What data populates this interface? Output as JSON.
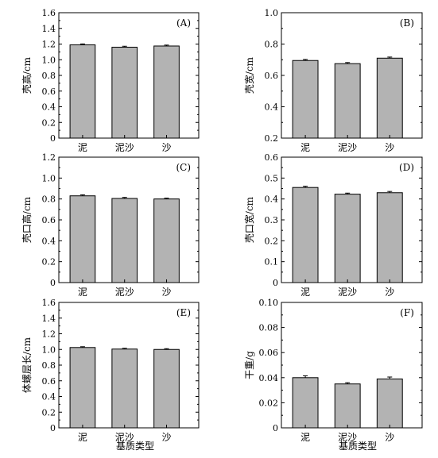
{
  "colors": {
    "bar_fill": "#b3b3b3",
    "bar_stroke": "#000000",
    "axis": "#000000"
  },
  "x_axis_title": "基质类型",
  "chart_data": [
    {
      "type": "bar",
      "panel": "(A)",
      "ylabel": "壳高/cm",
      "ylim": [
        0,
        1.6
      ],
      "yticks": [
        0,
        0.2,
        0.4,
        0.6,
        0.8,
        1.0,
        1.2,
        1.4,
        1.6
      ],
      "ytick_labels": [
        "0",
        "0.2",
        "0.4",
        "0.6",
        "0.8",
        "1.0",
        "1.2",
        "1.4",
        "1.6"
      ],
      "categories": [
        "泥",
        "泥沙",
        "沙"
      ],
      "values": [
        1.19,
        1.16,
        1.175
      ],
      "errors": [
        0.012,
        0.012,
        0.012
      ]
    },
    {
      "type": "bar",
      "panel": "(B)",
      "ylabel": "壳宽/cm",
      "ylim": [
        0.2,
        1.0
      ],
      "yticks": [
        0.2,
        0.4,
        0.6,
        0.8,
        1.0
      ],
      "ytick_labels": [
        "0.2",
        "0.4",
        "0.6",
        "0.8",
        "1.0"
      ],
      "categories": [
        "泥",
        "泥沙",
        "沙"
      ],
      "values": [
        0.695,
        0.675,
        0.71
      ],
      "errors": [
        0.007,
        0.007,
        0.007
      ]
    },
    {
      "type": "bar",
      "panel": "(C)",
      "ylabel": "壳口高/cm",
      "ylim": [
        0,
        1.2
      ],
      "yticks": [
        0,
        0.2,
        0.4,
        0.6,
        0.8,
        1.0,
        1.2
      ],
      "ytick_labels": [
        "0",
        "0.2",
        "0.4",
        "0.6",
        "0.8",
        "1.0",
        "1.2"
      ],
      "categories": [
        "泥",
        "泥沙",
        "沙"
      ],
      "values": [
        0.83,
        0.805,
        0.8
      ],
      "errors": [
        0.01,
        0.01,
        0.008
      ]
    },
    {
      "type": "bar",
      "panel": "(D)",
      "ylabel": "壳口宽/cm",
      "ylim": [
        0,
        0.6
      ],
      "yticks": [
        0,
        0.1,
        0.2,
        0.3,
        0.4,
        0.5,
        0.6
      ],
      "ytick_labels": [
        "0",
        "0.1",
        "0.2",
        "0.3",
        "0.4",
        "0.5",
        "0.6"
      ],
      "categories": [
        "泥",
        "泥沙",
        "沙"
      ],
      "values": [
        0.455,
        0.423,
        0.43
      ],
      "errors": [
        0.006,
        0.005,
        0.006
      ]
    },
    {
      "type": "bar",
      "panel": "(E)",
      "ylabel": "体螺层长/cm",
      "ylim": [
        0,
        1.6
      ],
      "yticks": [
        0,
        0.2,
        0.4,
        0.6,
        0.8,
        1.0,
        1.2,
        1.4,
        1.6
      ],
      "ytick_labels": [
        "0",
        "0.2",
        "0.4",
        "0.6",
        "0.8",
        "1.0",
        "1.2",
        "1.4",
        "1.6"
      ],
      "categories": [
        "泥",
        "泥沙",
        "沙"
      ],
      "values": [
        1.025,
        1.005,
        1.0
      ],
      "errors": [
        0.01,
        0.01,
        0.01
      ]
    },
    {
      "type": "bar",
      "panel": "(F)",
      "ylabel": "干重/g",
      "ylim": [
        0,
        0.1
      ],
      "yticks": [
        0,
        0.02,
        0.04,
        0.06,
        0.08,
        0.1
      ],
      "ytick_labels": [
        "0",
        "0.02",
        "0.04",
        "0.06",
        "0.08",
        "0.10"
      ],
      "categories": [
        "泥",
        "泥沙",
        "沙"
      ],
      "values": [
        0.04,
        0.035,
        0.039
      ],
      "errors": [
        0.0015,
        0.001,
        0.0015
      ]
    }
  ]
}
